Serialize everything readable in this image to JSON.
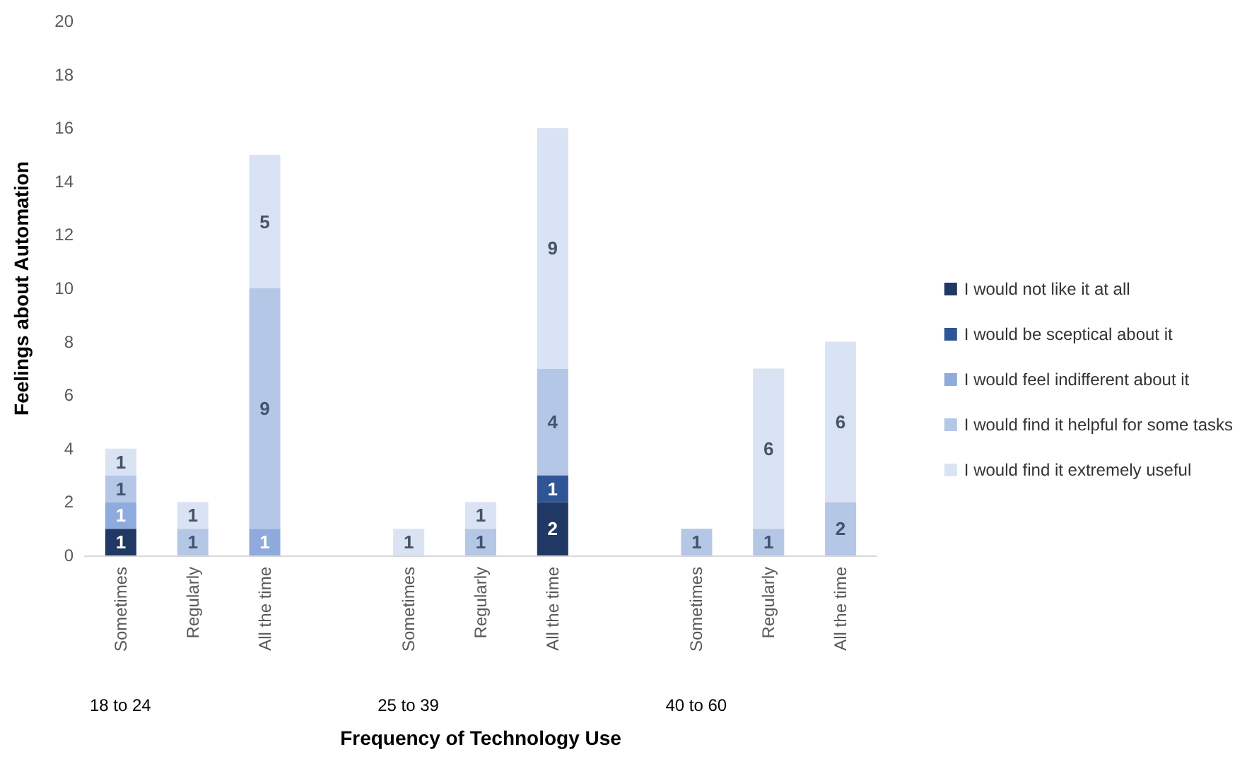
{
  "chart_data": {
    "type": "bar",
    "stacked": true,
    "xlabel": "Frequency of Technology Use",
    "ylabel": "Feelings about Automation",
    "categories": [
      "Sometimes",
      "Regularly",
      "All the time",
      null,
      "Sometimes",
      "Regularly",
      "All the time",
      null,
      "Sometimes",
      "Regularly",
      "All the time"
    ],
    "series": [
      {
        "name": "I would not like it at all",
        "color": "#203864",
        "values": [
          1,
          null,
          null,
          null,
          null,
          null,
          2,
          null,
          null,
          null,
          null
        ]
      },
      {
        "name": "I would be sceptical about it",
        "color": "#2f5597",
        "values": [
          null,
          null,
          null,
          null,
          null,
          null,
          1,
          null,
          null,
          null,
          null
        ]
      },
      {
        "name": "I would feel indifferent about it",
        "color": "#8faadc",
        "values": [
          1,
          null,
          1,
          null,
          null,
          null,
          null,
          null,
          null,
          null,
          null
        ]
      },
      {
        "name": "I would find it helpful for some tasks",
        "color": "#b4c7e7",
        "values": [
          1,
          1,
          9,
          null,
          null,
          1,
          4,
          null,
          1,
          1,
          2
        ]
      },
      {
        "name": "I would find it extremely useful",
        "color": "#dae3f3",
        "values": [
          1,
          1,
          5,
          null,
          1,
          1,
          9,
          null,
          null,
          6,
          6
        ]
      }
    ],
    "ylim": [
      0,
      20
    ],
    "yticks": [
      0,
      2,
      4,
      6,
      8,
      10,
      12,
      14,
      16,
      18,
      20
    ],
    "grid": false,
    "legend": "right",
    "data_labels": true,
    "annotations": [
      "18 to 24",
      "25 to 39",
      "40 to 60"
    ]
  }
}
